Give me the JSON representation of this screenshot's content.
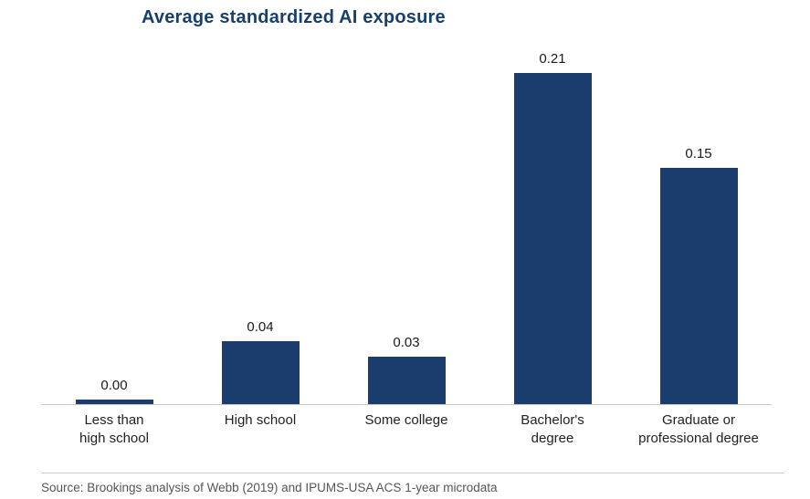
{
  "chart_data": {
    "type": "bar",
    "title": "Average standardized AI exposure",
    "categories": [
      "Less than high school",
      "High school",
      "Some college",
      "Bachelor's degree",
      "Graduate or professional degree"
    ],
    "categories_display": [
      "Less than\nhigh school",
      "High school",
      "Some college",
      "Bachelor's\ndegree",
      "Graduate or\nprofessional degree"
    ],
    "values": [
      0.0,
      0.04,
      0.03,
      0.21,
      0.15
    ],
    "values_formatted": [
      "0.00",
      "0.04",
      "0.03",
      "0.21",
      "0.15"
    ],
    "xlabel": "",
    "ylabel": "",
    "ylim": [
      0,
      0.22
    ],
    "grid": false,
    "legend": false,
    "bar_color": "#1b3d6d",
    "title_color": "#17406e",
    "source": "Source: Brookings analysis of Webb (2019) and IPUMS-USA ACS 1-year microdata"
  }
}
